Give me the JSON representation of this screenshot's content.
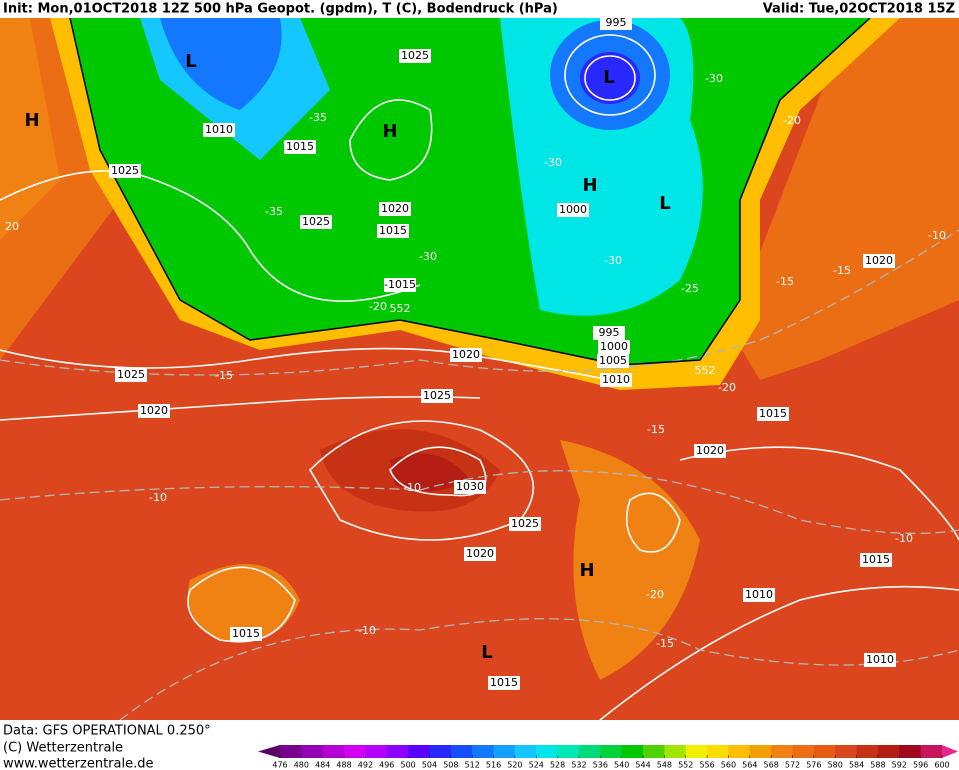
{
  "header": {
    "init": "Init: Mon,01OCT2018 12Z 500 hPa Geopot. (gpdm), T (C), Bodendruck (hPa)",
    "valid": "Valid: Tue,02OCT2018 15Z"
  },
  "map_labels": {
    "isobars": [
      "1025",
      "1010",
      "1015",
      "1025",
      "1020",
      "1025",
      "1015",
      "1000",
      "995",
      "-1015",
      "995",
      "1000",
      "1005",
      "1010",
      "1020",
      "1025",
      "1020",
      "1025",
      "1030",
      "1025",
      "1020",
      "1015",
      "1015",
      "1010",
      "1015",
      "1010",
      "1015",
      "1020",
      "1020"
    ],
    "temperatures": [
      "-30",
      "-20",
      "-35",
      "-30",
      "-35",
      "-30",
      "-30",
      "-25",
      "-20",
      "-15",
      "-15",
      "-10",
      "-15",
      "-20",
      "-15",
      "-10",
      "-10",
      "-20",
      "-15",
      "-10",
      "-10",
      "20",
      "552",
      "552"
    ],
    "centers": [
      "H",
      "L",
      "H",
      "L",
      "H",
      "L",
      "H",
      "L"
    ]
  },
  "footer": {
    "source": "Data: GFS OPERATIONAL 0.250°",
    "copyright": "(C) Wetterzentrale",
    "url": "www.wetterzentrale.de"
  },
  "colorbar": {
    "ticks": [
      476,
      480,
      484,
      488,
      492,
      496,
      500,
      504,
      508,
      512,
      516,
      520,
      524,
      528,
      532,
      536,
      540,
      544,
      548,
      552,
      556,
      560,
      564,
      568,
      572,
      576,
      580,
      584,
      588,
      592,
      596,
      600
    ],
    "colors": [
      "#5a0064",
      "#78008c",
      "#9600b4",
      "#b400d2",
      "#d200f0",
      "#b400ff",
      "#8c00ff",
      "#5a00ff",
      "#2828ff",
      "#1450ff",
      "#1478ff",
      "#14a0ff",
      "#14c8ff",
      "#00e6e6",
      "#00e6b4",
      "#00dc78",
      "#00d23c",
      "#00c800",
      "#50d200",
      "#a0e600",
      "#f0f000",
      "#ffdc00",
      "#ffbe00",
      "#f0a000",
      "#f08214",
      "#eb6e14",
      "#e65a14",
      "#dc461e",
      "#c83214",
      "#b41e14",
      "#a00a1e",
      "#c8145a",
      "#e6288c"
    ]
  }
}
